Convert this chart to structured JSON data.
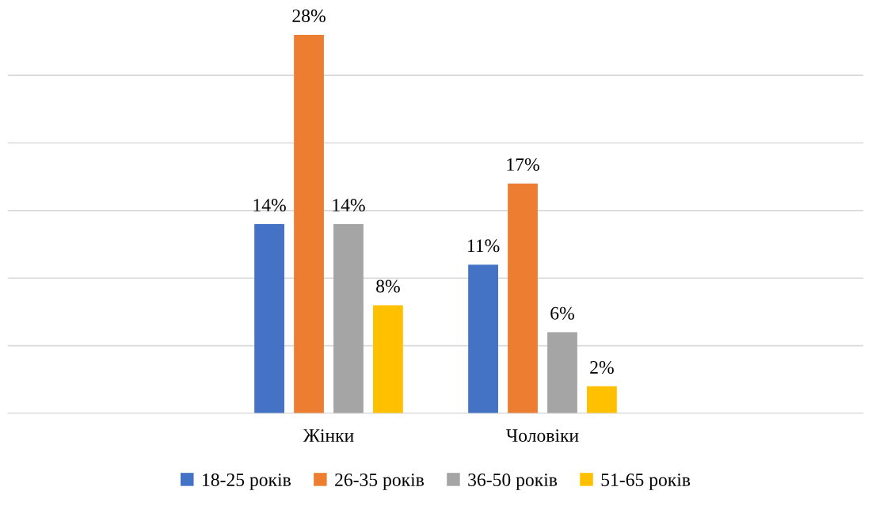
{
  "chart_data": {
    "type": "bar",
    "categories": [
      null,
      "Жінки",
      "Чоловіки",
      null
    ],
    "series": [
      {
        "name": "18-25 років",
        "color": "#4472c4",
        "values": [
          null,
          14,
          11,
          null
        ],
        "value_labels": [
          null,
          "14%",
          "11%",
          null
        ]
      },
      {
        "name": "26-35 років",
        "color": "#ed7d31",
        "values": [
          null,
          28,
          17,
          null
        ],
        "value_labels": [
          null,
          "28%",
          "17%",
          null
        ]
      },
      {
        "name": "36-50 років",
        "color": "#a5a5a5",
        "values": [
          null,
          14,
          6,
          null
        ],
        "value_labels": [
          null,
          "14%",
          "6%",
          null
        ]
      },
      {
        "name": "51-65 років",
        "color": "#ffc000",
        "values": [
          null,
          8,
          2,
          null
        ],
        "value_labels": [
          null,
          "8%",
          "2%",
          null
        ]
      }
    ],
    "grid": "y",
    "legend": "bottom",
    "tick_labels": "x"
  }
}
